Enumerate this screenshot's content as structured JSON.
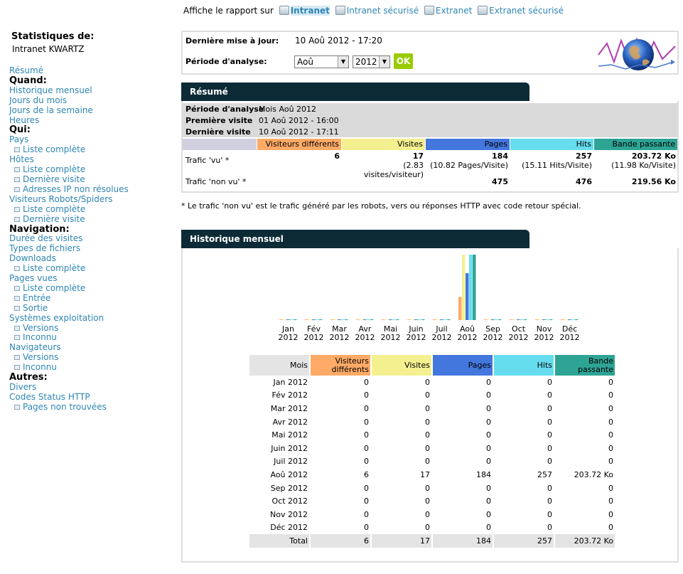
{
  "topbar": {
    "prefix": "Affiche le rapport sur",
    "links": [
      "Intranet",
      "Intranet sécurisé",
      "Extranet",
      "Extranet sécurisé"
    ]
  },
  "sidebar": {
    "title": "Statistiques de:",
    "site": "Intranet KWARTZ",
    "items": [
      {
        "label": "Résumé",
        "type": "link"
      },
      {
        "label": "Quand:",
        "type": "head"
      },
      {
        "label": "Historique mensuel",
        "type": "link"
      },
      {
        "label": "Jours du mois",
        "type": "link"
      },
      {
        "label": "Jours de la semaine",
        "type": "link"
      },
      {
        "label": "Heures",
        "type": "link"
      },
      {
        "label": "Qui:",
        "type": "head"
      },
      {
        "label": "Pays",
        "type": "link"
      },
      {
        "label": "Liste complète",
        "type": "sub"
      },
      {
        "label": "Hôtes",
        "type": "link"
      },
      {
        "label": "Liste complète",
        "type": "sub"
      },
      {
        "label": "Dernière visite",
        "type": "sub"
      },
      {
        "label": "Adresses IP non résolues",
        "type": "sub"
      },
      {
        "label": "Visiteurs Robots/Spiders",
        "type": "link"
      },
      {
        "label": "Liste complète",
        "type": "sub"
      },
      {
        "label": "Dernière visite",
        "type": "sub"
      },
      {
        "label": "Navigation:",
        "type": "head"
      },
      {
        "label": "Durée des visites",
        "type": "link"
      },
      {
        "label": "Types de fichiers",
        "type": "link"
      },
      {
        "label": "Downloads",
        "type": "link"
      },
      {
        "label": "Liste complète",
        "type": "sub"
      },
      {
        "label": "Pages vues",
        "type": "link"
      },
      {
        "label": "Liste complète",
        "type": "sub"
      },
      {
        "label": "Entrée",
        "type": "sub"
      },
      {
        "label": "Sortie",
        "type": "sub"
      },
      {
        "label": "Systèmes exploitation",
        "type": "link"
      },
      {
        "label": "Versions",
        "type": "sub"
      },
      {
        "label": "Inconnu",
        "type": "sub"
      },
      {
        "label": "Navigateurs",
        "type": "link"
      },
      {
        "label": "Versions",
        "type": "sub"
      },
      {
        "label": "Inconnu",
        "type": "sub"
      },
      {
        "label": "Autres:",
        "type": "head"
      },
      {
        "label": "Divers",
        "type": "link"
      },
      {
        "label": "Codes Status HTTP",
        "type": "link"
      },
      {
        "label": "Pages non trouvées",
        "type": "sub"
      }
    ]
  },
  "info": {
    "last_update_label": "Dernière mise à jour:",
    "last_update_value": "10 Aoû 2012 - 17:20",
    "period_label": "Période d'analyse:",
    "month_value": "Aoû",
    "year_value": "2012",
    "ok_label": "OK"
  },
  "resume": {
    "title": "Résumé",
    "period_label": "Période d'analyse",
    "period_value": "Mois Aoû 2012",
    "first_visit_label": "Première visite",
    "first_visit_value": "01 Aoû 2012 - 16:00",
    "last_visit_label": "Dernière visite",
    "last_visit_value": "10 Aoû 2012 - 17:11",
    "headers": [
      "Visiteurs différents",
      "Visites",
      "Pages",
      "Hits",
      "Bande passante"
    ],
    "seen_label": "Trafic 'vu' *",
    "seen": [
      "6",
      "17",
      "184",
      "257",
      "203.72 Ko"
    ],
    "seen_sub": [
      "(2.83 visites/visiteur)",
      "(10.82 Pages/Visite)",
      "(15.11 Hits/Visite)",
      "(11.98 Ko/Visite)"
    ],
    "unseen_label": "Trafic 'non vu' *",
    "unseen": [
      "475",
      "476",
      "219.56 Ko"
    ],
    "note": "* Le trafic 'non vu' est le trafic généré par les robots, vers ou réponses HTTP avec code retour spécial."
  },
  "colors": {
    "visitors": "#ffaa66",
    "visits": "#f4f090",
    "pages": "#4477dd",
    "hits": "#66ddee",
    "bandwidth": "#2ea495",
    "header_dark": "#0d2b36",
    "link": "#2e86b4"
  },
  "history": {
    "title": "Historique mensuel",
    "month_col_label": "Mois",
    "headers": [
      "Visiteurs différents",
      "Visites",
      "Pages",
      "Hits",
      "Bande passante"
    ],
    "rows": [
      {
        "month": "Jan 2012",
        "v": [
          "0",
          "0",
          "0",
          "0",
          "0"
        ]
      },
      {
        "month": "Fév 2012",
        "v": [
          "0",
          "0",
          "0",
          "0",
          "0"
        ]
      },
      {
        "month": "Mar 2012",
        "v": [
          "0",
          "0",
          "0",
          "0",
          "0"
        ]
      },
      {
        "month": "Avr 2012",
        "v": [
          "0",
          "0",
          "0",
          "0",
          "0"
        ]
      },
      {
        "month": "Mai 2012",
        "v": [
          "0",
          "0",
          "0",
          "0",
          "0"
        ]
      },
      {
        "month": "Juin 2012",
        "v": [
          "0",
          "0",
          "0",
          "0",
          "0"
        ]
      },
      {
        "month": "Juil 2012",
        "v": [
          "0",
          "0",
          "0",
          "0",
          "0"
        ]
      },
      {
        "month": "Aoû 2012",
        "v": [
          "6",
          "17",
          "184",
          "257",
          "203.72 Ko"
        ]
      },
      {
        "month": "Sep 2012",
        "v": [
          "0",
          "0",
          "0",
          "0",
          "0"
        ]
      },
      {
        "month": "Oct 2012",
        "v": [
          "0",
          "0",
          "0",
          "0",
          "0"
        ]
      },
      {
        "month": "Nov 2012",
        "v": [
          "0",
          "0",
          "0",
          "0",
          "0"
        ]
      },
      {
        "month": "Déc 2012",
        "v": [
          "0",
          "0",
          "0",
          "0",
          "0"
        ]
      }
    ],
    "total_label": "Total",
    "totals": [
      "6",
      "17",
      "184",
      "257",
      "203.72 Ko"
    ]
  },
  "chart_data": {
    "type": "bar",
    "categories": [
      "Jan 2012",
      "Fév 2012",
      "Mar 2012",
      "Avr 2012",
      "Mai 2012",
      "Juin 2012",
      "Juil 2012",
      "Aoû 2012",
      "Sep 2012",
      "Oct 2012",
      "Nov 2012",
      "Déc 2012"
    ],
    "tick_labels_top": [
      "Jan",
      "Fév",
      "Mar",
      "Avr",
      "Mai",
      "Juin",
      "Juil",
      "Aoû",
      "Sep",
      "Oct",
      "Nov",
      "Déc"
    ],
    "tick_labels_bottom": [
      "2012",
      "2012",
      "2012",
      "2012",
      "2012",
      "2012",
      "2012",
      "2012",
      "2012",
      "2012",
      "2012",
      "2012"
    ],
    "series": [
      {
        "name": "Visiteurs différents",
        "values": [
          0,
          0,
          0,
          0,
          0,
          0,
          0,
          6,
          0,
          0,
          0,
          0
        ],
        "max": 17
      },
      {
        "name": "Visites",
        "values": [
          0,
          0,
          0,
          0,
          0,
          0,
          0,
          17,
          0,
          0,
          0,
          0
        ],
        "max": 17
      },
      {
        "name": "Pages",
        "values": [
          0,
          0,
          0,
          0,
          0,
          0,
          0,
          184,
          0,
          0,
          0,
          0
        ],
        "max": 257
      },
      {
        "name": "Hits",
        "values": [
          0,
          0,
          0,
          0,
          0,
          0,
          0,
          257,
          0,
          0,
          0,
          0
        ],
        "max": 257
      },
      {
        "name": "Bande passante",
        "values": [
          0,
          0,
          0,
          0,
          0,
          0,
          0,
          203.72,
          0,
          0,
          0,
          0
        ],
        "max": 203.72
      }
    ],
    "grid": false,
    "legend": "none"
  }
}
